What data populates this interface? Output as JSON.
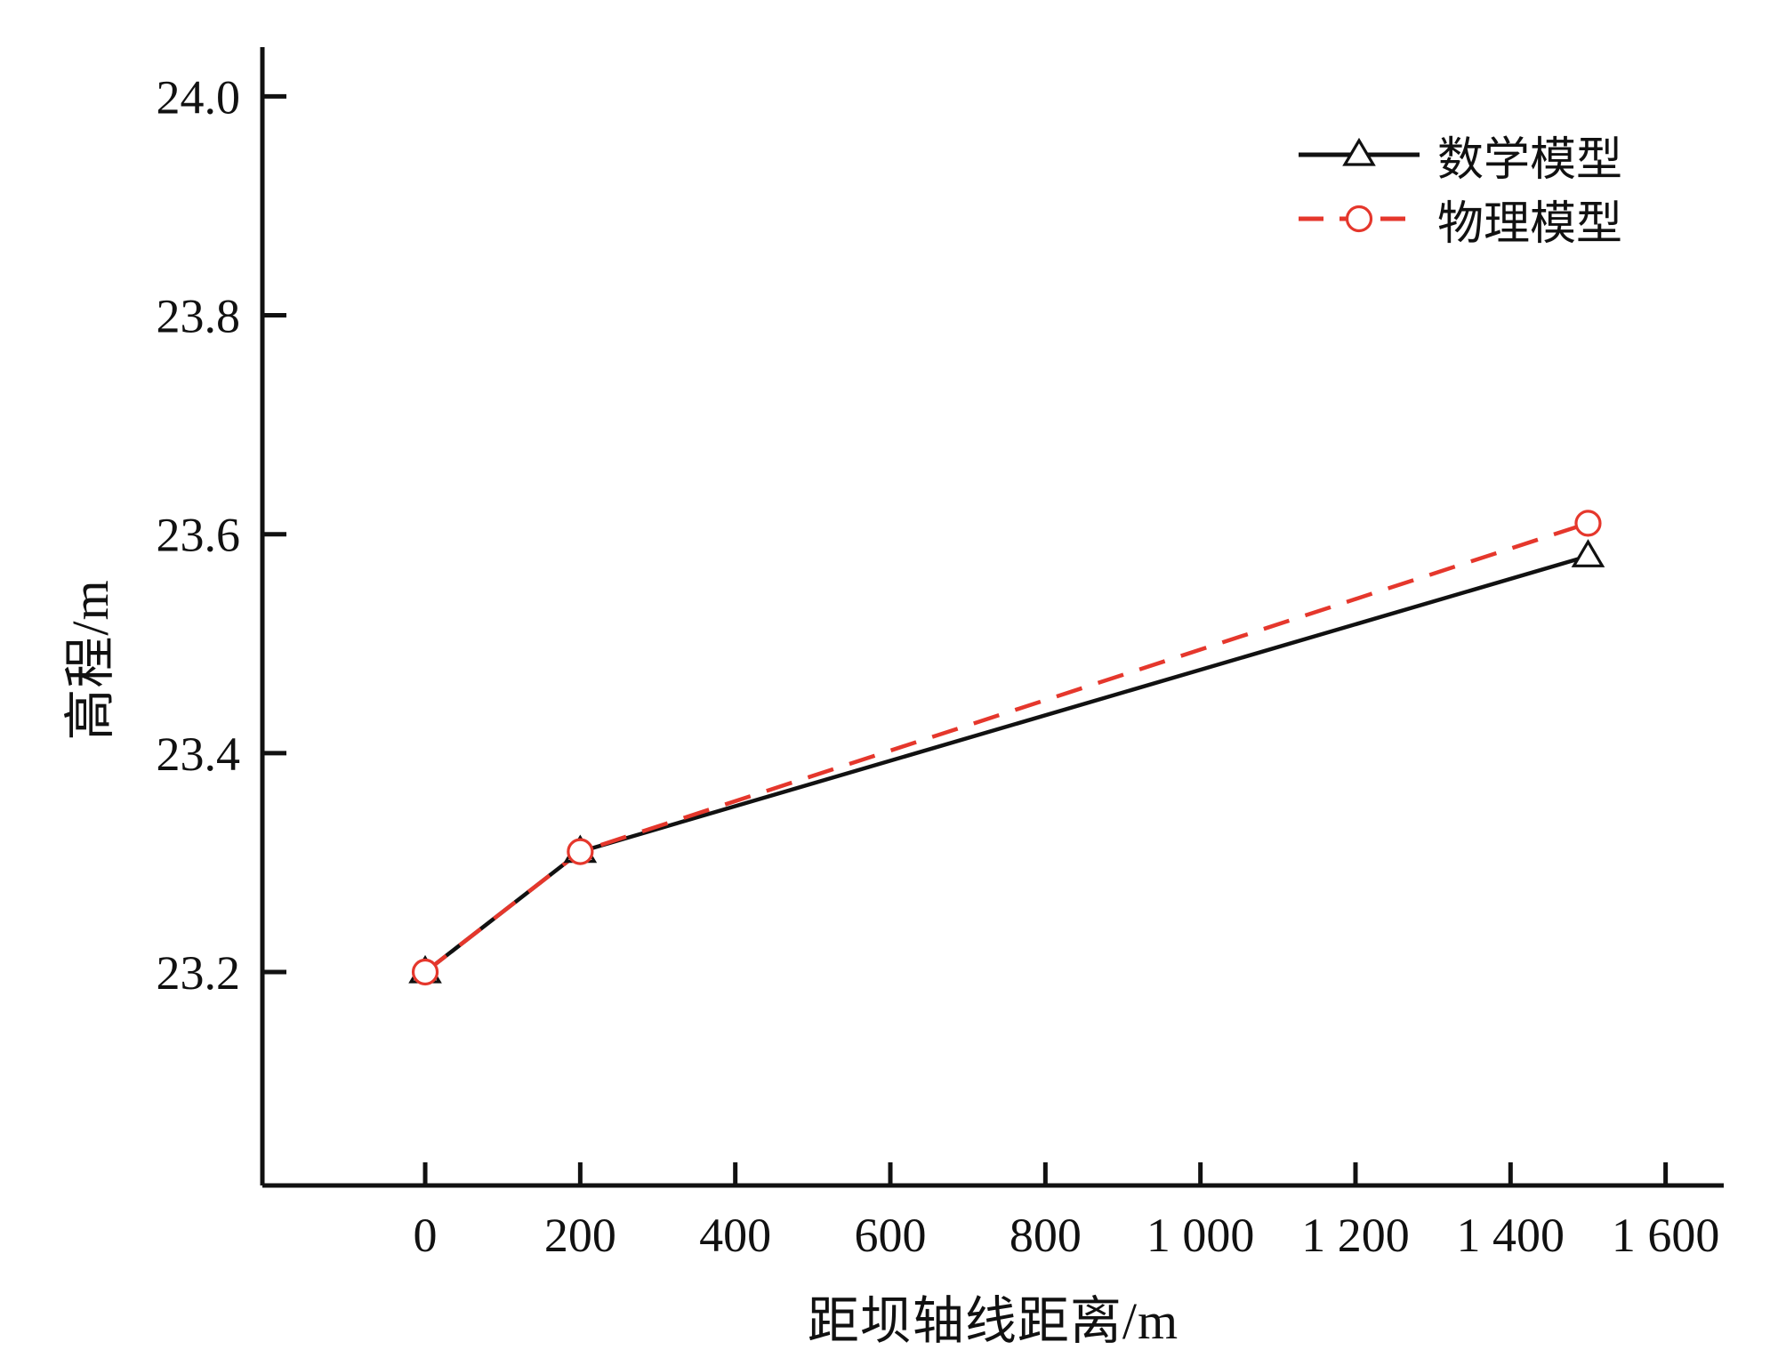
{
  "chart_data": {
    "type": "line",
    "title": "",
    "xlabel": "距坝轴线距离/m",
    "ylabel": "高程/m",
    "xlim": [
      -210,
      1675
    ],
    "ylim": [
      23.005,
      24.045
    ],
    "grid": false,
    "legend_position": "top-right",
    "x_ticks": {
      "values": [
        0,
        200,
        400,
        600,
        800,
        1000,
        1200,
        1400,
        1600
      ],
      "labels": [
        "0",
        "200",
        "400",
        "600",
        "800",
        "1 000",
        "1 200",
        "1 400",
        "1 600"
      ]
    },
    "y_ticks": {
      "values": [
        23.2,
        23.4,
        23.6,
        23.8,
        24.0
      ],
      "labels": [
        "23.2",
        "23.4",
        "23.6",
        "23.8",
        "24.0"
      ]
    },
    "series": [
      {
        "name": "数学模型",
        "color": "#111111",
        "line_style": "solid",
        "marker": "triangle",
        "x": [
          0,
          200,
          1500
        ],
        "y": [
          23.2,
          23.31,
          23.58
        ]
      },
      {
        "name": "物理模型",
        "color": "#e5372c",
        "line_style": "dashed",
        "marker": "circle",
        "x": [
          0,
          200,
          1500
        ],
        "y": [
          23.2,
          23.31,
          23.61
        ]
      }
    ]
  }
}
